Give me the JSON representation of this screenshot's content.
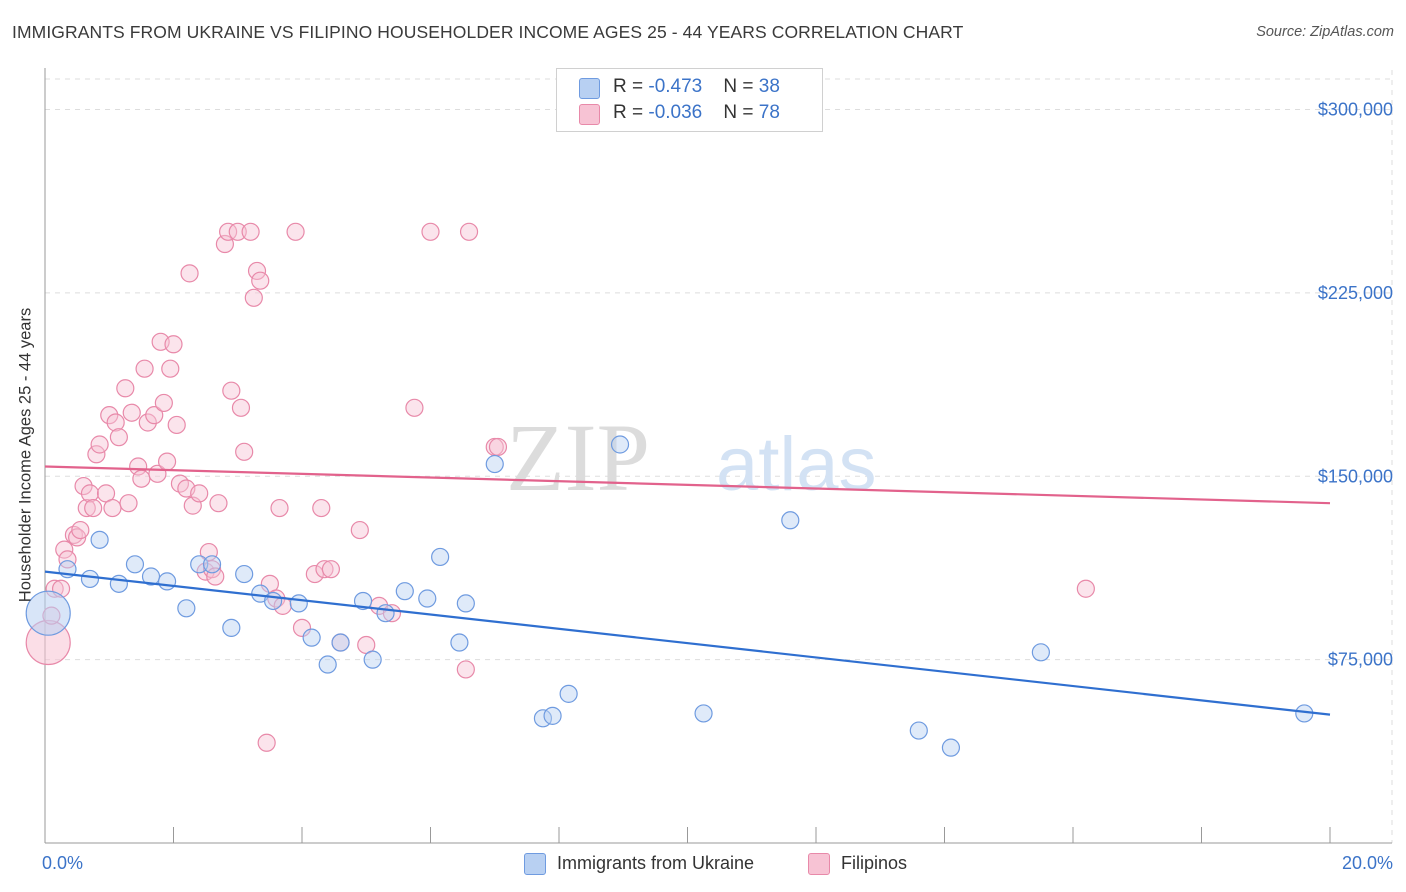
{
  "title": "IMMIGRANTS FROM UKRAINE VS FILIPINO HOUSEHOLDER INCOME AGES 25 - 44 YEARS CORRELATION CHART",
  "source": "Source: ZipAtlas.com",
  "watermark": {
    "zip": "ZIP",
    "atlas": "atlas"
  },
  "legend": [
    {
      "r_label": "R = ",
      "r_value": "-0.473",
      "n_label": "N = ",
      "n_value": "38"
    },
    {
      "r_label": "R = ",
      "r_value": "-0.036",
      "n_label": "N = ",
      "n_value": "78"
    }
  ],
  "colors": {
    "blue_fill": "#b8d0f2",
    "blue_stroke": "#6f9be0",
    "blue_line": "#2f6fd0",
    "pink_fill": "#f7c3d4",
    "pink_stroke": "#e889a9",
    "pink_line": "#e2628c",
    "value_text": "#3b73c8",
    "grid": "#dddddd"
  },
  "chart_data": {
    "type": "scatter",
    "title": "IMMIGRANTS FROM UKRAINE VS FILIPINO HOUSEHOLDER INCOME AGES 25 - 44 YEARS CORRELATION CHART",
    "xlabel": "",
    "ylabel": "Householder Income Ages 25 - 44 years",
    "xlim": [
      0,
      20
    ],
    "ylim": [
      0,
      312500
    ],
    "x_tick_labels": [
      "0.0%",
      "20.0%"
    ],
    "y_ticks": [
      75000,
      150000,
      225000,
      300000
    ],
    "y_tick_labels": [
      "$75,000",
      "$150,000",
      "$225,000",
      "$300,000"
    ],
    "grid": true,
    "legend_position": "top-center",
    "series": [
      {
        "name": "Immigrants from Ukraine",
        "color": "#6f9be0",
        "r": -0.473,
        "n": 38,
        "trend": {
          "x": [
            0,
            20
          ],
          "y": [
            111000,
            52500
          ]
        },
        "points": [
          {
            "x": 0.05,
            "y": 94000,
            "big": true
          },
          {
            "x": 0.35,
            "y": 112000
          },
          {
            "x": 0.7,
            "y": 108000
          },
          {
            "x": 0.85,
            "y": 124000
          },
          {
            "x": 1.15,
            "y": 106000
          },
          {
            "x": 1.4,
            "y": 114000
          },
          {
            "x": 1.65,
            "y": 109000
          },
          {
            "x": 1.9,
            "y": 107000
          },
          {
            "x": 2.2,
            "y": 96000
          },
          {
            "x": 2.4,
            "y": 114000
          },
          {
            "x": 2.6,
            "y": 114000
          },
          {
            "x": 2.9,
            "y": 88000
          },
          {
            "x": 3.1,
            "y": 110000
          },
          {
            "x": 3.35,
            "y": 102000
          },
          {
            "x": 3.55,
            "y": 99000
          },
          {
            "x": 3.95,
            "y": 98000
          },
          {
            "x": 4.15,
            "y": 84000
          },
          {
            "x": 4.4,
            "y": 73000
          },
          {
            "x": 4.6,
            "y": 82000
          },
          {
            "x": 4.95,
            "y": 99000
          },
          {
            "x": 5.1,
            "y": 75000
          },
          {
            "x": 5.3,
            "y": 94000
          },
          {
            "x": 5.6,
            "y": 103000
          },
          {
            "x": 5.95,
            "y": 100000
          },
          {
            "x": 6.15,
            "y": 117000
          },
          {
            "x": 6.45,
            "y": 82000
          },
          {
            "x": 6.55,
            "y": 98000
          },
          {
            "x": 7.0,
            "y": 155000
          },
          {
            "x": 7.75,
            "y": 51000
          },
          {
            "x": 7.9,
            "y": 52000
          },
          {
            "x": 8.15,
            "y": 61000
          },
          {
            "x": 8.95,
            "y": 163000
          },
          {
            "x": 10.25,
            "y": 53000
          },
          {
            "x": 11.6,
            "y": 132000
          },
          {
            "x": 13.6,
            "y": 46000
          },
          {
            "x": 14.1,
            "y": 39000
          },
          {
            "x": 15.5,
            "y": 78000
          },
          {
            "x": 19.6,
            "y": 53000
          }
        ]
      },
      {
        "name": "Filipinos",
        "color": "#e889a9",
        "r": -0.036,
        "n": 78,
        "trend": {
          "x": [
            0,
            20
          ],
          "y": [
            154000,
            139000
          ]
        },
        "points": [
          {
            "x": 0.05,
            "y": 82000,
            "big": true
          },
          {
            "x": 0.1,
            "y": 93000
          },
          {
            "x": 0.15,
            "y": 104000
          },
          {
            "x": 0.25,
            "y": 104000
          },
          {
            "x": 0.3,
            "y": 120000
          },
          {
            "x": 0.35,
            "y": 116000
          },
          {
            "x": 0.45,
            "y": 126000
          },
          {
            "x": 0.5,
            "y": 125000
          },
          {
            "x": 0.55,
            "y": 128000
          },
          {
            "x": 0.6,
            "y": 146000
          },
          {
            "x": 0.65,
            "y": 137000
          },
          {
            "x": 0.7,
            "y": 143000
          },
          {
            "x": 0.75,
            "y": 137000
          },
          {
            "x": 0.8,
            "y": 159000
          },
          {
            "x": 0.85,
            "y": 163000
          },
          {
            "x": 0.95,
            "y": 143000
          },
          {
            "x": 1.0,
            "y": 175000
          },
          {
            "x": 1.05,
            "y": 137000
          },
          {
            "x": 1.1,
            "y": 172000
          },
          {
            "x": 1.15,
            "y": 166000
          },
          {
            "x": 1.25,
            "y": 186000
          },
          {
            "x": 1.3,
            "y": 139000
          },
          {
            "x": 1.35,
            "y": 176000
          },
          {
            "x": 1.45,
            "y": 154000
          },
          {
            "x": 1.5,
            "y": 149000
          },
          {
            "x": 1.55,
            "y": 194000
          },
          {
            "x": 1.6,
            "y": 172000
          },
          {
            "x": 1.7,
            "y": 175000
          },
          {
            "x": 1.75,
            "y": 151000
          },
          {
            "x": 1.8,
            "y": 205000
          },
          {
            "x": 1.85,
            "y": 180000
          },
          {
            "x": 1.9,
            "y": 156000
          },
          {
            "x": 1.95,
            "y": 194000
          },
          {
            "x": 2.0,
            "y": 204000
          },
          {
            "x": 2.05,
            "y": 171000
          },
          {
            "x": 2.1,
            "y": 147000
          },
          {
            "x": 2.2,
            "y": 145000
          },
          {
            "x": 2.25,
            "y": 233000
          },
          {
            "x": 2.3,
            "y": 138000
          },
          {
            "x": 2.4,
            "y": 143000
          },
          {
            "x": 2.5,
            "y": 111000
          },
          {
            "x": 2.55,
            "y": 119000
          },
          {
            "x": 2.6,
            "y": 112000
          },
          {
            "x": 2.65,
            "y": 109000
          },
          {
            "x": 2.7,
            "y": 139000
          },
          {
            "x": 2.8,
            "y": 245000
          },
          {
            "x": 2.85,
            "y": 250000
          },
          {
            "x": 2.9,
            "y": 185000
          },
          {
            "x": 3.0,
            "y": 250000
          },
          {
            "x": 3.05,
            "y": 178000
          },
          {
            "x": 3.1,
            "y": 160000
          },
          {
            "x": 3.2,
            "y": 250000
          },
          {
            "x": 3.25,
            "y": 223000
          },
          {
            "x": 3.3,
            "y": 234000
          },
          {
            "x": 3.35,
            "y": 230000
          },
          {
            "x": 3.45,
            "y": 41000
          },
          {
            "x": 3.5,
            "y": 106000
          },
          {
            "x": 3.6,
            "y": 100000
          },
          {
            "x": 3.65,
            "y": 137000
          },
          {
            "x": 3.7,
            "y": 97000
          },
          {
            "x": 3.9,
            "y": 250000
          },
          {
            "x": 4.0,
            "y": 88000
          },
          {
            "x": 4.2,
            "y": 110000
          },
          {
            "x": 4.3,
            "y": 137000
          },
          {
            "x": 4.35,
            "y": 112000
          },
          {
            "x": 4.45,
            "y": 112000
          },
          {
            "x": 4.6,
            "y": 82000
          },
          {
            "x": 4.9,
            "y": 128000
          },
          {
            "x": 5.0,
            "y": 81000
          },
          {
            "x": 5.2,
            "y": 97000
          },
          {
            "x": 5.4,
            "y": 94000
          },
          {
            "x": 5.75,
            "y": 178000
          },
          {
            "x": 6.0,
            "y": 250000
          },
          {
            "x": 6.55,
            "y": 71000
          },
          {
            "x": 6.6,
            "y": 250000
          },
          {
            "x": 7.0,
            "y": 162000
          },
          {
            "x": 7.05,
            "y": 162000
          },
          {
            "x": 16.2,
            "y": 104000
          }
        ]
      }
    ]
  },
  "bottom_legend": [
    "Immigrants from Ukraine",
    "Filipinos"
  ]
}
